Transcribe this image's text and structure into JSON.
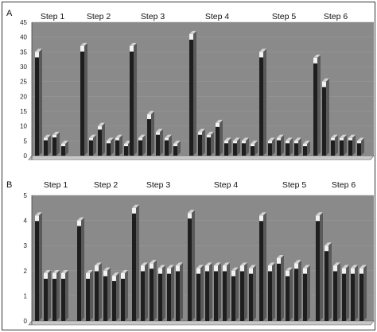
{
  "chart_data": [
    {
      "panel": "A",
      "type": "bar",
      "style": "3d-grouped-bars",
      "ylim": [
        0,
        45
      ],
      "yticks": [
        0,
        5,
        10,
        15,
        20,
        25,
        30,
        35,
        40,
        45
      ],
      "grid": true,
      "groups": [
        {
          "label": "Step 1",
          "values": [
            35,
            6,
            7,
            4
          ]
        },
        {
          "label": "Step 2",
          "values": [
            37,
            6,
            10,
            5,
            6,
            4
          ]
        },
        {
          "label": "Step 3",
          "values": [
            37,
            6,
            14,
            8,
            6,
            4
          ]
        },
        {
          "label": "Step 4",
          "values": [
            41,
            8,
            7,
            11,
            5,
            5,
            5,
            4
          ]
        },
        {
          "label": "Step 5",
          "values": [
            35,
            5,
            6,
            5,
            5,
            4
          ]
        },
        {
          "label": "Step 6",
          "values": [
            33,
            25,
            6,
            6,
            6,
            5
          ]
        }
      ]
    },
    {
      "panel": "B",
      "type": "bar",
      "style": "3d-grouped-bars",
      "ylim": [
        0,
        5
      ],
      "yticks": [
        0,
        1,
        2,
        3,
        4,
        5
      ],
      "grid": true,
      "groups": [
        {
          "label": "Step 1",
          "values": [
            4.2,
            1.9,
            1.9,
            1.9
          ]
        },
        {
          "label": "Step 2",
          "values": [
            4.0,
            1.9,
            2.2,
            2.0,
            1.8,
            1.9
          ]
        },
        {
          "label": "Step 3",
          "values": [
            4.5,
            2.2,
            2.3,
            2.1,
            2.1,
            2.2
          ]
        },
        {
          "label": "Step 4",
          "values": [
            4.3,
            2.1,
            2.2,
            2.2,
            2.2,
            2.0,
            2.2,
            2.1
          ]
        },
        {
          "label": "Step 5",
          "values": [
            4.2,
            2.2,
            2.5,
            2.0,
            2.3,
            2.1
          ]
        },
        {
          "label": "Step 6",
          "values": [
            4.2,
            3.0,
            2.2,
            2.1,
            2.1,
            2.1
          ]
        }
      ]
    }
  ],
  "colors": {
    "bar_front": "#1e1e1e",
    "bar_side": "#5a5a5a",
    "bar_top": "#d2d2d2",
    "plot_wall": "#8a8a8a",
    "floor": "#c8c8c8",
    "border": "#333333"
  }
}
